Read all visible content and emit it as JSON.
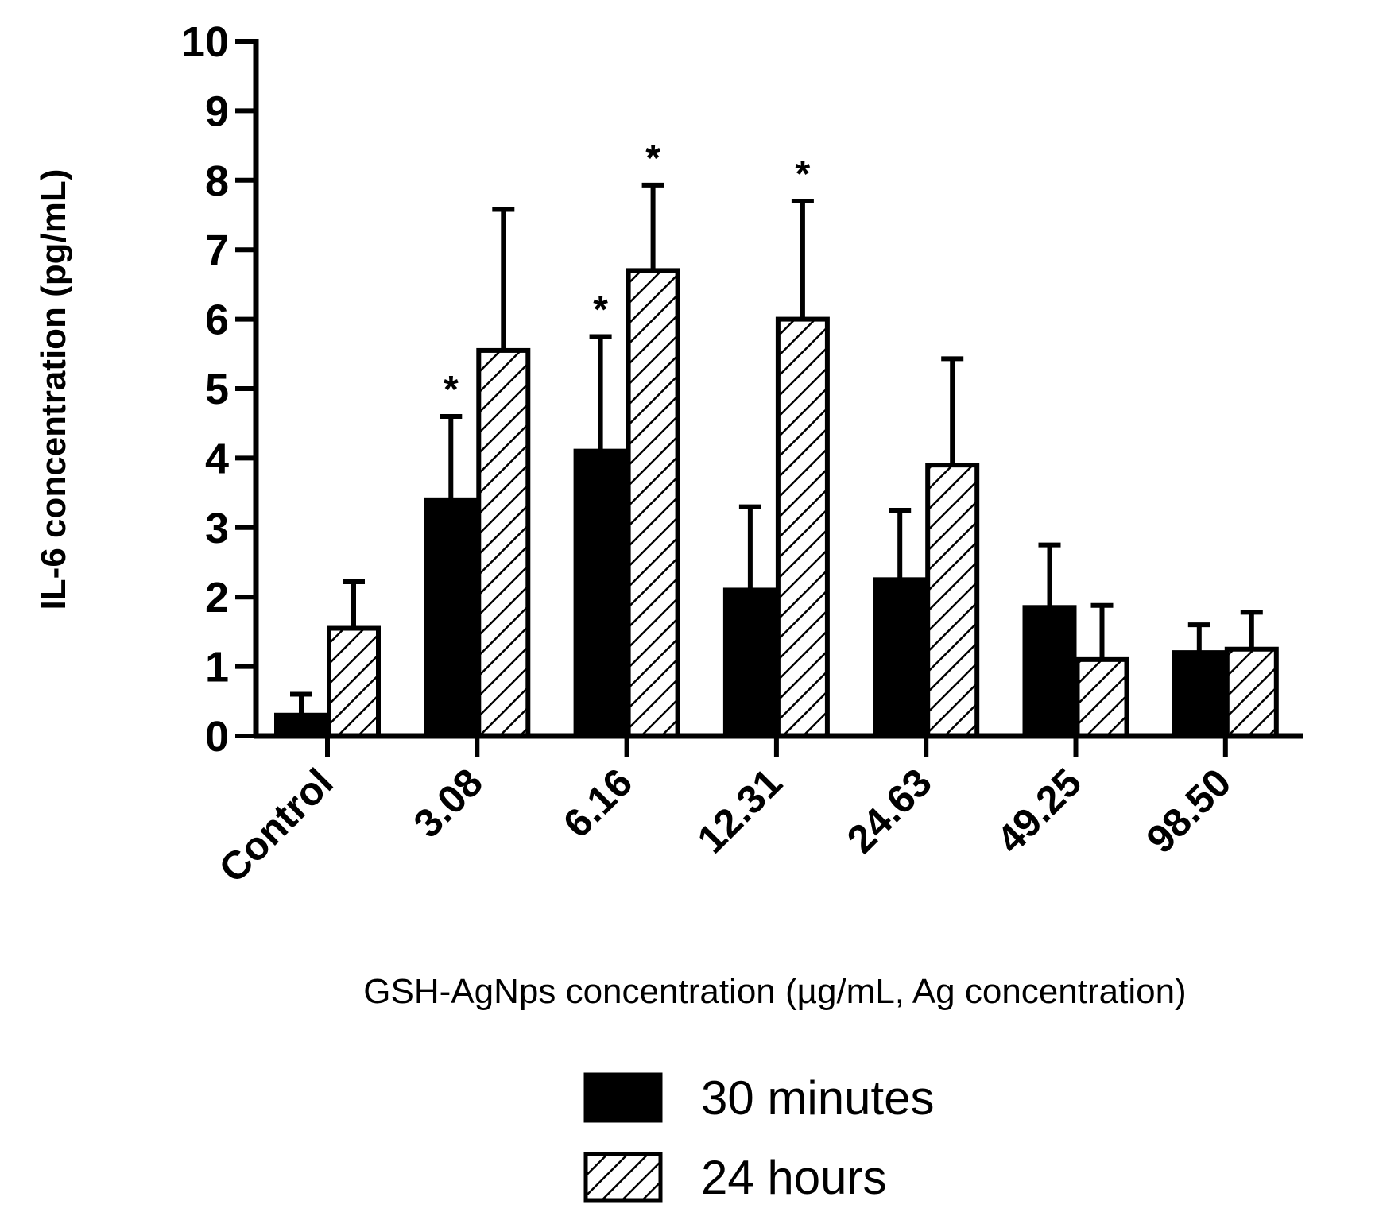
{
  "chart_data": {
    "type": "bar",
    "xlabel": "GSH-AgNps concentration (µg/mL, Ag concentration)",
    "ylabel": "IL-6 concentration (pg/mL)",
    "ylim": [
      0,
      10
    ],
    "yticks": [
      "0",
      "1",
      "2",
      "3",
      "4",
      "5",
      "6",
      "7",
      "8",
      "9",
      "10"
    ],
    "categories": [
      "Control",
      "3.08",
      "6.16",
      "12.31",
      "24.63",
      "49.25",
      "98.50"
    ],
    "series": [
      {
        "name": "30 minutes",
        "fill": "solid",
        "color": "#000000",
        "values": [
          0.3,
          3.4,
          4.1,
          2.1,
          2.25,
          1.85,
          1.2
        ],
        "error": [
          0.3,
          1.2,
          1.65,
          1.2,
          1.0,
          0.9,
          0.4
        ],
        "significance": [
          "",
          "*",
          "*",
          "",
          "",
          "",
          ""
        ]
      },
      {
        "name": "24 hours",
        "fill": "hatched",
        "color": "#000000",
        "values": [
          1.55,
          5.55,
          6.7,
          6.0,
          3.9,
          1.1,
          1.25
        ],
        "error": [
          0.67,
          2.03,
          1.23,
          1.7,
          1.53,
          0.78,
          0.53
        ],
        "significance": [
          "",
          "",
          "*",
          "*",
          "",
          "",
          ""
        ]
      }
    ],
    "grid": false,
    "legend": "bottom-center"
  }
}
